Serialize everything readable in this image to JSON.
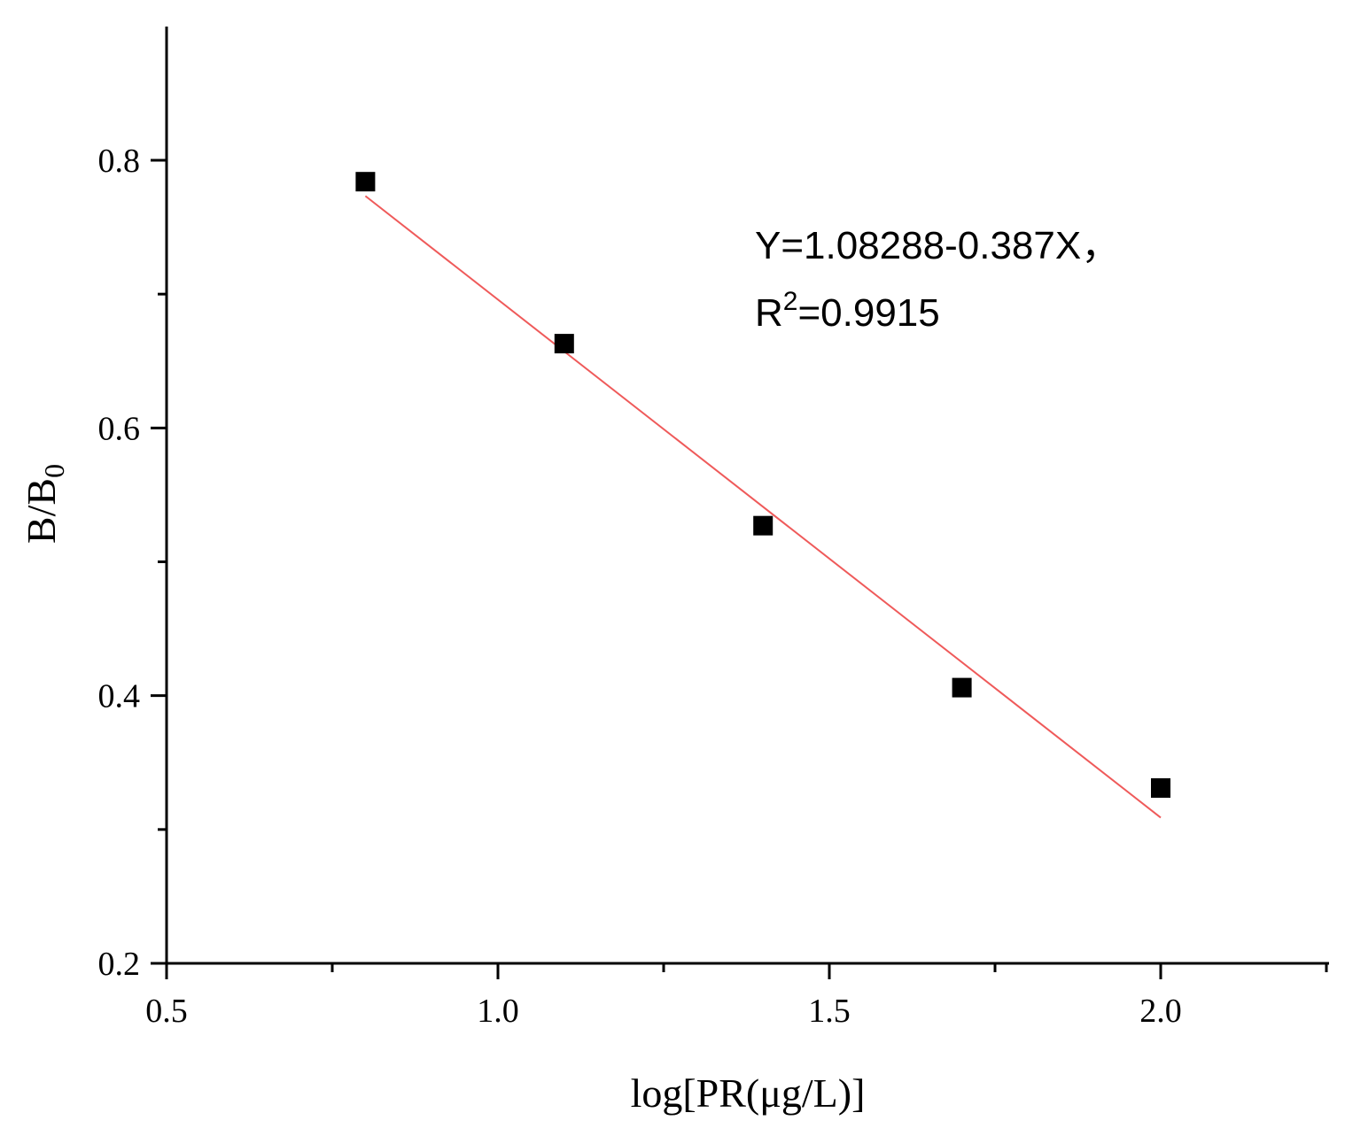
{
  "chart_data": {
    "type": "scatter",
    "title": "",
    "xlabel": "log[PR(μg/L)]",
    "ylabel_main": "B/B",
    "ylabel_sub": "0",
    "xlim": [
      0.5,
      2.25
    ],
    "ylim": [
      0.2,
      0.9
    ],
    "x_major_ticks": [
      0.5,
      1.0,
      1.5,
      2.0
    ],
    "x_minor_ticks": [
      0.75,
      1.25,
      1.75,
      2.25
    ],
    "y_major_ticks": [
      0.2,
      0.4,
      0.6,
      0.8
    ],
    "y_minor_ticks": [
      0.3,
      0.5,
      0.7
    ],
    "x_tick_labels": [
      "0.5",
      "1.0",
      "1.5",
      "2.0"
    ],
    "y_tick_labels": [
      "0.2",
      "0.4",
      "0.6",
      "0.8"
    ],
    "points": [
      {
        "x": 0.8,
        "y": 0.784
      },
      {
        "x": 1.1,
        "y": 0.663
      },
      {
        "x": 1.4,
        "y": 0.527
      },
      {
        "x": 1.7,
        "y": 0.406
      },
      {
        "x": 2.0,
        "y": 0.331
      }
    ],
    "fit": {
      "intercept": 1.08288,
      "slope": -0.387,
      "x_range": [
        0.8,
        2.0
      ],
      "color": "#ef5a5a"
    },
    "annotation": {
      "line1": "Y=1.08288-0.387X，",
      "line2_prefix": "R",
      "line2_sup": "2",
      "line2_suffix": "=0.9915"
    },
    "grid": false,
    "point_color": "#000000"
  }
}
